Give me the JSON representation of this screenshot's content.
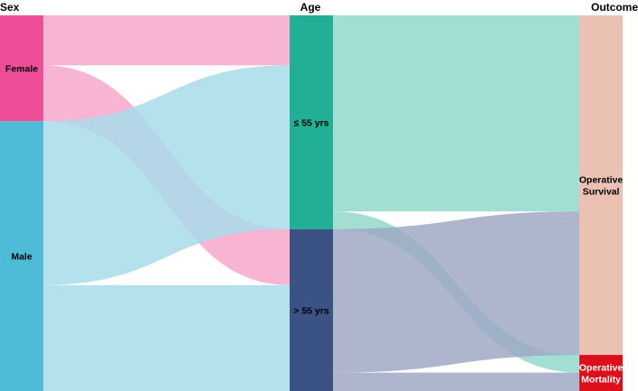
{
  "chart_data": {
    "type": "sankey",
    "columns": [
      "Sex",
      "Age",
      "Outcome"
    ],
    "nodes": [
      {
        "id": "female",
        "label": "Female",
        "label_lines": [
          "Female"
        ],
        "column": 0,
        "color": "#ED4E97",
        "label_color": "#000000"
      },
      {
        "id": "male",
        "label": "Male",
        "label_lines": [
          "Male"
        ],
        "column": 0,
        "color": "#4EBCD7",
        "label_color": "#000000"
      },
      {
        "id": "le55",
        "label": "≤ 55 yrs",
        "label_lines": [
          "≤ 55 yrs"
        ],
        "column": 1,
        "color": "#21B095",
        "label_color": "#000000"
      },
      {
        "id": "gt55",
        "label": "> 55 yrs",
        "label_lines": [
          "> 55 yrs"
        ],
        "column": 1,
        "color": "#3B5285",
        "label_color": "#000000"
      },
      {
        "id": "survival",
        "label": "Operative Survival",
        "label_lines": [
          "Operative",
          "Survival"
        ],
        "column": 2,
        "color": "#EBC1B3",
        "label_color": "#000000"
      },
      {
        "id": "mortality",
        "label": "Operative Mortality",
        "label_lines": [
          "Operative",
          "Mortality"
        ],
        "column": 2,
        "color": "#DD0F1A",
        "label_color": "#ffffff"
      }
    ],
    "links": [
      {
        "source": "female",
        "target": "le55",
        "value": 13.3,
        "color": "#F7A8CB"
      },
      {
        "source": "female",
        "target": "gt55",
        "value": 14.9,
        "color": "#F7A8CB"
      },
      {
        "source": "male",
        "target": "le55",
        "value": 43.6,
        "color": "#A8DCEA"
      },
      {
        "source": "male",
        "target": "gt55",
        "value": 28.2,
        "color": "#A8DCEA"
      },
      {
        "source": "le55",
        "target": "survival",
        "value": 52.2,
        "color": "#93D8CB"
      },
      {
        "source": "le55",
        "target": "mortality",
        "value": 4.7,
        "color": "#93D8CB"
      },
      {
        "source": "gt55",
        "target": "survival",
        "value": 38.2,
        "color": "#9FA9C3"
      },
      {
        "source": "gt55",
        "target": "mortality",
        "value": 4.9,
        "color": "#9FA9C3"
      }
    ]
  }
}
